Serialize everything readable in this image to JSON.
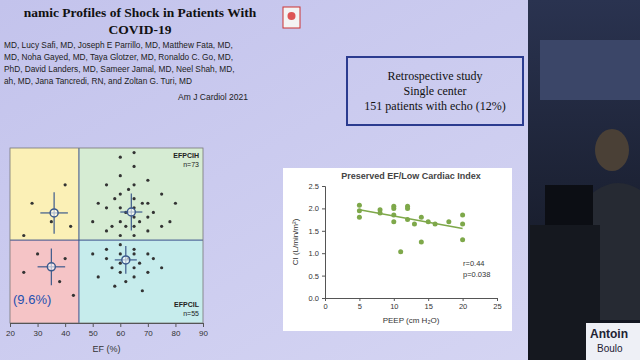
{
  "slide": {
    "title_lines": [
      "namic Profiles of Shock in Patients With",
      "COVID-19"
    ],
    "authors": [
      "MD, Lucy Safi, MD, Joseph E Parrillo, MD, Matthew Fata, MD,",
      "MD, Noha Gayed, MD, Taya Glotzer, MD, Ronaldo C. Go, MD,",
      "PhD, David Landers, MD, Sameer Jamal, MD, Neel Shah, MD,",
      "ah, MD, Jana Tancredi, RN, and Zoltan G. Turi, MD"
    ],
    "journal": "Am J Cardiol 2021",
    "box": [
      "Retrospective study",
      "Single center",
      "151 patients with echo (12%)"
    ],
    "speaker": [
      "Antoin",
      "Boulo"
    ]
  },
  "chart_data": [
    {
      "type": "scatter",
      "xlabel": "EF (%)",
      "xlim": [
        20,
        90
      ],
      "xticks": [
        20,
        30,
        40,
        50,
        60,
        70,
        80,
        90
      ],
      "ylim": [
        0.4,
        4.2
      ],
      "tick_labels": "x",
      "grid": false,
      "quadrant_split": {
        "x": 45,
        "y": 2.2
      },
      "annotations": [
        "EFPCIH",
        "n=73",
        "EFPCIL",
        "n=55",
        "(9.6%)"
      ],
      "series": [
        {
          "color": "#333333",
          "marker": "dot",
          "x": [
            50,
            52,
            55,
            55,
            55,
            57,
            58,
            60,
            60,
            60,
            60,
            60,
            60,
            62,
            62,
            63,
            65,
            65,
            65,
            65,
            65,
            65,
            65,
            65,
            67,
            68,
            70,
            70,
            70,
            70,
            72,
            75,
            75,
            78,
            80,
            50,
            52,
            55,
            55,
            57,
            58,
            60,
            60,
            60,
            60,
            62,
            63,
            65,
            65,
            65,
            65,
            67,
            68,
            70,
            70,
            72,
            75,
            25,
            28,
            35,
            40,
            42,
            25,
            30,
            38,
            40,
            43
          ],
          "values": [
            2.6,
            3.0,
            2.4,
            2.9,
            3.4,
            2.5,
            3.1,
            2.3,
            2.6,
            2.9,
            3.2,
            3.6,
            4.0,
            2.5,
            2.8,
            3.3,
            2.3,
            2.5,
            2.7,
            2.9,
            3.1,
            3.4,
            3.8,
            4.1,
            2.6,
            3.0,
            2.4,
            2.7,
            3.0,
            3.5,
            2.8,
            2.5,
            3.2,
            2.6,
            3.0,
            1.9,
            1.4,
            1.8,
            2.0,
            1.6,
            1.2,
            1.9,
            1.7,
            1.5,
            2.1,
            1.3,
            1.8,
            1.9,
            1.6,
            2.0,
            1.4,
            1.7,
            1.1,
            1.9,
            1.5,
            1.8,
            1.6,
            2.3,
            3.0,
            2.6,
            3.4,
            2.5,
            1.5,
            1.9,
            1.3,
            1.8,
            1.0
          ]
        },
        {
          "color": "#3c5a8c",
          "marker": "circle",
          "x": [
            36,
            35,
            64,
            62
          ],
          "values": [
            2.79,
            1.62,
            2.81,
            1.77
          ],
          "x_error": [
            5,
            5,
            4,
            4
          ],
          "error": [
            0.45,
            0.4,
            0.4,
            0.3
          ]
        }
      ]
    },
    {
      "type": "scatter",
      "title": "Preserved EF/Low Cardiac Index",
      "xlabel": "PEEP (cm H₂O)",
      "ylabel": "CI (L/min/m²)",
      "xlim": [
        0,
        25
      ],
      "xticks": [
        0,
        5,
        10,
        15,
        20,
        25
      ],
      "ylim": [
        0,
        2.5
      ],
      "yticks": [
        {
          "value": 0,
          "label": "0.0"
        },
        0.5,
        {
          "value": 1,
          "label": "1.0"
        },
        1.5,
        {
          "value": 2,
          "label": "2.0"
        },
        2.5
      ],
      "grid": false,
      "annotations": [
        "r=0.44",
        "p=0.038"
      ],
      "series": [
        {
          "color": "#7ea84a",
          "marker": "dot",
          "x": [
            5,
            5,
            5,
            8,
            8,
            10,
            10,
            10,
            10,
            11,
            12,
            12,
            12,
            13,
            14,
            14,
            15,
            16,
            18,
            20,
            20,
            20
          ],
          "values": [
            2.07,
            1.95,
            1.8,
            1.97,
            1.9,
            2.05,
            2.0,
            1.85,
            1.7,
            1.03,
            2.05,
            2.0,
            1.75,
            1.65,
            1.8,
            1.25,
            1.7,
            1.65,
            1.7,
            1.85,
            1.65,
            1.3
          ]
        },
        {
          "type": "line",
          "color": "#7ea84a",
          "line_style": "solid",
          "x": [
            5,
            20
          ],
          "values": [
            1.97,
            1.55
          ]
        }
      ]
    }
  ]
}
